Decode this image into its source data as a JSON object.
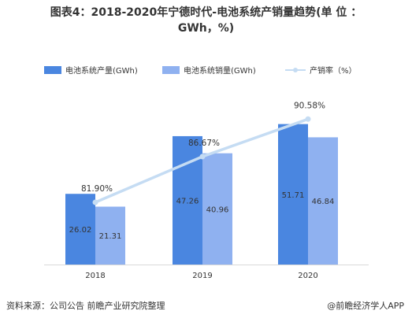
{
  "title_line1": "图表4：2018-2020年宁德时代-电池系统产销量趋势(单 位 ：",
  "title_line2": "GWh，%)",
  "colors": {
    "production": "#4a86e0",
    "sales": "#8fb1f0",
    "rate": "#c5dcf3"
  },
  "chart_data": {
    "type": "bar",
    "categories": [
      "2018",
      "2019",
      "2020"
    ],
    "series": [
      {
        "name": "电池系统产量(GWh)",
        "type": "bar",
        "values": [
          26.02,
          47.26,
          51.71
        ]
      },
      {
        "name": "电池系统销量(GWh)",
        "type": "bar",
        "values": [
          21.31,
          40.96,
          46.84
        ]
      },
      {
        "name": "产销率（%）",
        "type": "line",
        "values": [
          81.9,
          86.67,
          90.58
        ],
        "labels": [
          "81.90%",
          "86.67%",
          "90.58%"
        ]
      }
    ],
    "grid": false,
    "legend": "top"
  },
  "footer": {
    "source": "资料来源：公司公告 前瞻产业研究院整理",
    "brand": "@前瞻经济学人APP"
  }
}
